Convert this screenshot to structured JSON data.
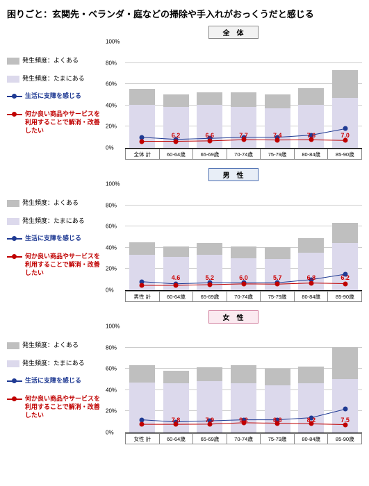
{
  "title": "困りごと：玄関先・ベランダ・庭などの掃除や手入れがおっくうだと感じる",
  "ymax": 100,
  "yticks": [
    0,
    20,
    40,
    60,
    80,
    100
  ],
  "legend": [
    {
      "type": "swatch",
      "color": "#bfbfbf",
      "label": "発生頻度：よくある"
    },
    {
      "type": "swatch",
      "color": "#dcd9ec",
      "label": "発生頻度：たまにある"
    },
    {
      "type": "line",
      "color": "#1f3a93",
      "label": "生活に支障を感じる"
    },
    {
      "type": "line",
      "color": "#c00000",
      "label": "何か良い商品やサービスを利用することで解消・改善したい"
    }
  ],
  "panels": [
    {
      "label": "全　体",
      "border": "#888",
      "bg": "#f2f2f2",
      "categories": [
        "全体 計",
        "60-64歳",
        "65-69歳",
        "70-74歳",
        "75-79歳",
        "80-84歳",
        "85-90歳"
      ],
      "stack_lower": [
        40,
        38,
        40,
        38,
        37,
        40,
        47
      ],
      "stack_upper": [
        55,
        50,
        52,
        52,
        50,
        56,
        73
      ],
      "line_navy": [
        10,
        8,
        9,
        10,
        10,
        12,
        18
      ],
      "line_red": [
        6.2,
        6.2,
        6.6,
        7.7,
        7.4,
        7.6,
        7.0
      ],
      "labels": [
        "",
        "6.2",
        "6.6",
        "7.7",
        "7.4",
        "7.6",
        "7.0"
      ]
    },
    {
      "label": "男　性",
      "border": "#4a6db0",
      "bg": "#e8eef7",
      "categories": [
        "男性 計",
        "60-64歳",
        "65-69歳",
        "70-74歳",
        "75-79歳",
        "80-84歳",
        "85-90歳"
      ],
      "stack_lower": [
        33,
        31,
        33,
        30,
        29,
        35,
        44
      ],
      "stack_upper": [
        45,
        41,
        44,
        41,
        40,
        49,
        63
      ],
      "line_navy": [
        8,
        6,
        7,
        7,
        7,
        10,
        15
      ],
      "line_red": [
        4.6,
        4.6,
        5.2,
        6.0,
        5.7,
        6.8,
        6.2
      ],
      "labels": [
        "",
        "4.6",
        "5.2",
        "6.0",
        "5.7",
        "6.8",
        "6.2"
      ]
    },
    {
      "label": "女　性",
      "border": "#d07a9a",
      "bg": "#fbeaf0",
      "categories": [
        "女性 計",
        "60-64歳",
        "65-69歳",
        "70-74歳",
        "75-79歳",
        "80-84歳",
        "85-90歳"
      ],
      "stack_lower": [
        47,
        46,
        48,
        46,
        44,
        46,
        50
      ],
      "stack_upper": [
        63,
        58,
        61,
        63,
        60,
        62,
        80
      ],
      "line_navy": [
        12,
        10,
        11,
        12,
        12,
        14,
        22
      ],
      "line_red": [
        7.8,
        7.8,
        7.9,
        9.2,
        8.8,
        8.2,
        7.5
      ],
      "labels": [
        "",
        "7.8",
        "7.9",
        "9.2",
        "8.8",
        "8.2",
        "7.5"
      ]
    }
  ],
  "colors": {
    "lower": "#dcd9ec",
    "upper": "#bfbfbf",
    "navy": "#1f3a93",
    "red": "#c00000"
  }
}
